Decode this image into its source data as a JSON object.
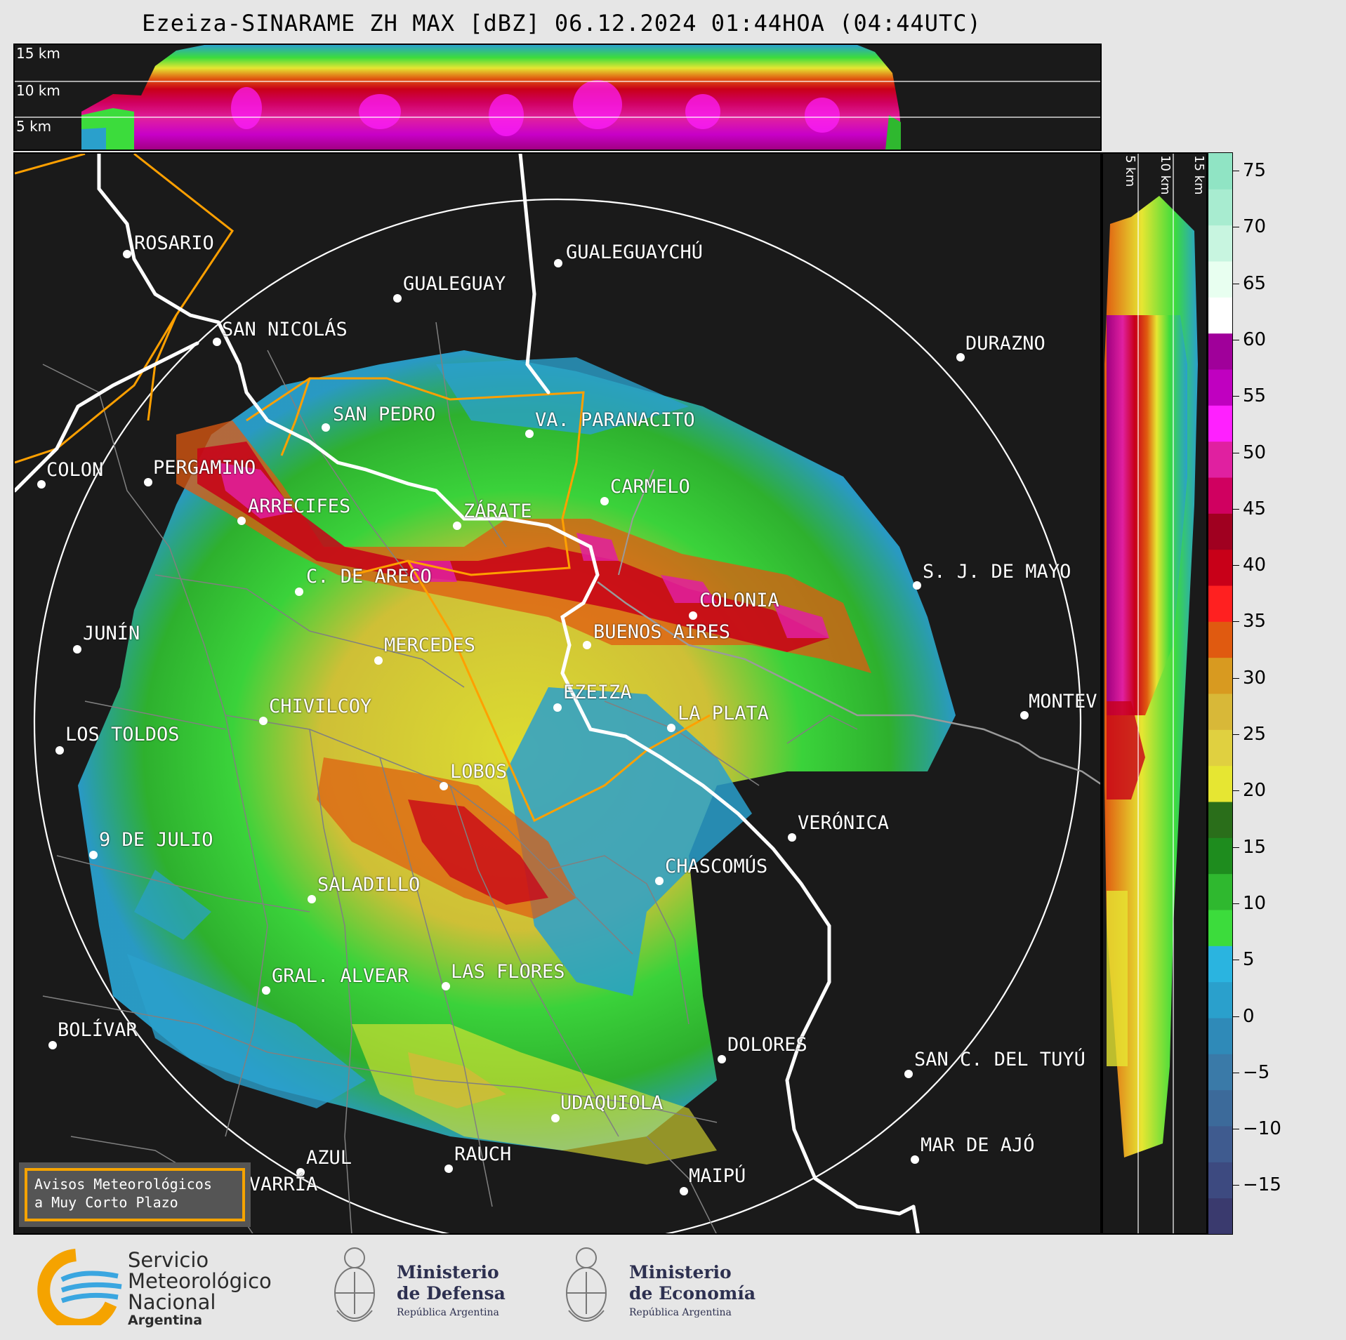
{
  "title": "Ezeiza-SINARAME ZH MAX [dBZ] 06.12.2024 01:44HOA (04:44UTC)",
  "top_panel": {
    "height_labels": [
      "15 km",
      "10 km",
      "5 km"
    ]
  },
  "side_panel": {
    "height_labels": [
      "5 km",
      "10 km",
      "15 km"
    ]
  },
  "colorbar": {
    "unit": "dBZ",
    "ticks": [
      "75",
      "70",
      "65",
      "60",
      "55",
      "50",
      "45",
      "40",
      "35",
      "30",
      "25",
      "20",
      "15",
      "10",
      "5",
      "0",
      "−5",
      "−10",
      "−15"
    ],
    "colors": [
      "#3a3a6e",
      "#3d4a80",
      "#3f5b8f",
      "#3c6a9a",
      "#3a7aa8",
      "#2f8ab8",
      "#2aa0cc",
      "#2ab4e0",
      "#3cdc3c",
      "#2fb82f",
      "#1e8c1e",
      "#2a6e1a",
      "#e6e632",
      "#e0d040",
      "#d8b838",
      "#d89a20",
      "#e05a10",
      "#ff2020",
      "#c80018",
      "#a00020",
      "#d00060",
      "#e020a0",
      "#ff20ff",
      "#c000c0",
      "#a0009a",
      "#ffffff",
      "#e8fff0",
      "#c8f5e0",
      "#a8ecd0",
      "#90e4c4"
    ],
    "accent_ring": "#ffffff",
    "province_border": "#ffa000"
  },
  "cities": [
    {
      "name": "ROSARIO"
    },
    {
      "name": "GUALEGUAYCHÚ"
    },
    {
      "name": "GUALEGUAY"
    },
    {
      "name": "SAN NICOLÁS"
    },
    {
      "name": "DURAZNO"
    },
    {
      "name": "SAN PEDRO"
    },
    {
      "name": "VA. PARANACITO"
    },
    {
      "name": "COLON"
    },
    {
      "name": "PERGAMINO"
    },
    {
      "name": "CARMELO"
    },
    {
      "name": "ARRECIFES"
    },
    {
      "name": "ZÁRATE"
    },
    {
      "name": "S. J. DE MAYO"
    },
    {
      "name": "C. DE ARECO"
    },
    {
      "name": "COLONIA"
    },
    {
      "name": "JUNÍN"
    },
    {
      "name": "MERCEDES"
    },
    {
      "name": "BUENOS AIRES"
    },
    {
      "name": "MONTEV"
    },
    {
      "name": "EZEIZA"
    },
    {
      "name": "CHIVILCOY"
    },
    {
      "name": "LA PLATA"
    },
    {
      "name": "LOS TOLDOS"
    },
    {
      "name": "LOBOS"
    },
    {
      "name": "VERÓNICA"
    },
    {
      "name": "9 DE JULIO"
    },
    {
      "name": "CHASCOMÚS"
    },
    {
      "name": "SALADILLO"
    },
    {
      "name": "GRAL. ALVEAR"
    },
    {
      "name": "LAS FLORES"
    },
    {
      "name": "BOLÍVAR"
    },
    {
      "name": "DOLORES"
    },
    {
      "name": "SAN C. DEL TUYÚ"
    },
    {
      "name": "UDAQUIOLA"
    },
    {
      "name": "MAR DE AJÓ"
    },
    {
      "name": "AZUL"
    },
    {
      "name": "RAUCH"
    },
    {
      "name": "OLAVARRÍA"
    },
    {
      "name": "MAIPÚ"
    }
  ],
  "warning": {
    "line1": "Avisos Meteorológicos",
    "line2": "a Muy Corto Plazo"
  },
  "footer": {
    "smn": {
      "line1": "Servicio",
      "line2": "Meteorológico",
      "line3": "Nacional",
      "line4": "Argentina"
    },
    "defensa": {
      "line1": "Ministerio",
      "line2": "de Defensa",
      "sub": "República Argentina"
    },
    "economia": {
      "line1": "Ministerio",
      "line2": "de Economía",
      "sub": "República Argentina"
    }
  }
}
